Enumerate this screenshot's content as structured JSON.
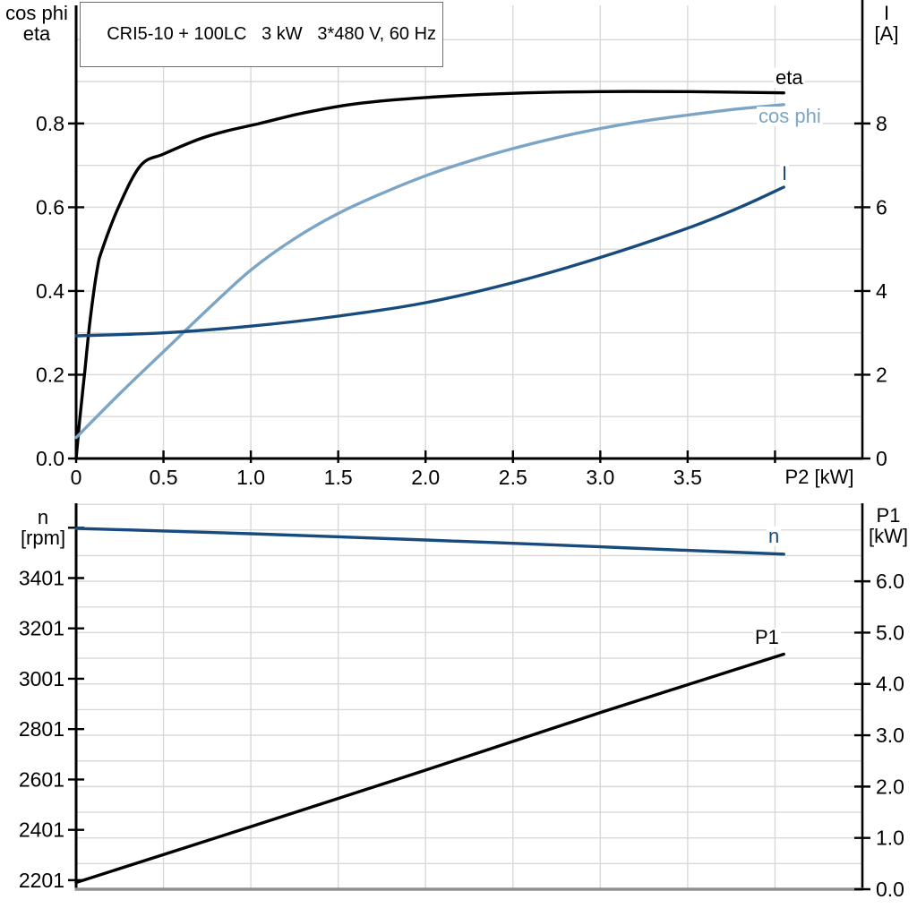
{
  "title_box": "CRI5-10 + 100LC   3 kW   3*480 V, 60 Hz",
  "colors": {
    "curve_black": "#000000",
    "curve_light_blue": "#7ca4c5",
    "curve_dark_blue": "#174b7e",
    "grid": "#d8d8d8",
    "axis": "#000000",
    "axis_gray": "#909090"
  },
  "chart_data": [
    {
      "type": "line",
      "name": "motor-performance",
      "xlabel": "P2 [kW]",
      "xlim": [
        0,
        4.5
      ],
      "x_ticks": [
        0,
        0.5,
        1,
        1.5,
        2,
        2.5,
        3,
        3.5,
        4
      ],
      "x_tick_labels": [
        "0",
        "0.5",
        "1.0",
        "1.5",
        "2.0",
        "2.5",
        "3.0",
        "3.5",
        ""
      ],
      "left_axis": {
        "title_lines": [
          "cos phi",
          "eta"
        ],
        "range": [
          0,
          1.082
        ],
        "ticks": [
          0,
          0.2,
          0.4,
          0.6,
          0.8
        ],
        "tick_labels": [
          "0.0",
          "0.2",
          "0.4",
          "0.6",
          "0.8"
        ]
      },
      "right_axis": {
        "title_lines": [
          "I",
          "[A]"
        ],
        "range": [
          0,
          10.82
        ],
        "ticks": [
          0,
          2,
          4,
          6,
          8
        ],
        "tick_labels": [
          "0",
          "2",
          "4",
          "6",
          "8"
        ]
      },
      "grid": {
        "axis": "left",
        "from": 0.1,
        "to": 1.0,
        "step": 0.1
      },
      "series": [
        {
          "name": "eta",
          "label": "eta",
          "axis": "left",
          "color_key": "curve_black",
          "points": [
            [
              0,
              0
            ],
            [
              0.02,
              0.09
            ],
            [
              0.05,
              0.21
            ],
            [
              0.08,
              0.33
            ],
            [
              0.12,
              0.45
            ],
            [
              0.15,
              0.5
            ],
            [
              0.25,
              0.607
            ],
            [
              0.37,
              0.7
            ],
            [
              0.5,
              0.727
            ],
            [
              0.7,
              0.762
            ],
            [
              0.85,
              0.781
            ],
            [
              1.05,
              0.8
            ],
            [
              1.3,
              0.825
            ],
            [
              1.6,
              0.847
            ],
            [
              2.0,
              0.862
            ],
            [
              2.5,
              0.872
            ],
            [
              3.0,
              0.876
            ],
            [
              3.5,
              0.876
            ],
            [
              4.05,
              0.873
            ]
          ]
        },
        {
          "name": "cos-phi",
          "label": "cos phi",
          "axis": "left",
          "color_key": "curve_light_blue",
          "points": [
            [
              0,
              0.05
            ],
            [
              0.25,
              0.155
            ],
            [
              0.5,
              0.255
            ],
            [
              0.75,
              0.355
            ],
            [
              1.0,
              0.45
            ],
            [
              1.25,
              0.525
            ],
            [
              1.5,
              0.585
            ],
            [
              1.75,
              0.633
            ],
            [
              2.0,
              0.675
            ],
            [
              2.25,
              0.71
            ],
            [
              2.5,
              0.74
            ],
            [
              2.75,
              0.766
            ],
            [
              3.0,
              0.788
            ],
            [
              3.25,
              0.806
            ],
            [
              3.5,
              0.82
            ],
            [
              3.75,
              0.833
            ],
            [
              4.05,
              0.845
            ]
          ]
        },
        {
          "name": "i",
          "label": "I",
          "axis": "right",
          "color_key": "curve_dark_blue",
          "points": [
            [
              0,
              2.93
            ],
            [
              0.5,
              3.0
            ],
            [
              1.0,
              3.16
            ],
            [
              1.5,
              3.4
            ],
            [
              2.0,
              3.72
            ],
            [
              2.5,
              4.2
            ],
            [
              3.0,
              4.8
            ],
            [
              3.5,
              5.5
            ],
            [
              3.8,
              6.0
            ],
            [
              4.05,
              6.48
            ]
          ]
        }
      ]
    },
    {
      "type": "line",
      "name": "speed-and-input-power",
      "xlabel": "",
      "xlim": [
        0,
        4.5
      ],
      "x_ticks": [
        0,
        0.5,
        1,
        1.5,
        2,
        2.5,
        3,
        3.5,
        4
      ],
      "x_tick_labels": [
        "",
        "",
        "",
        "",
        "",
        "",
        "",
        "",
        ""
      ],
      "left_axis": {
        "title_lines": [
          "n",
          "[rpm]"
        ],
        "range": [
          2165,
          3698
        ],
        "ticks": [
          2201,
          2401,
          2601,
          2801,
          3001,
          3201,
          3401,
          3601
        ],
        "tick_labels": [
          "2201",
          "2401",
          "2601",
          "2801",
          "3001",
          "3201",
          "3401",
          ""
        ]
      },
      "right_axis": {
        "title_lines": [
          "P1",
          "[kW]"
        ],
        "range": [
          0,
          7.52
        ],
        "ticks": [
          0,
          1,
          2,
          3,
          4,
          5,
          6
        ],
        "tick_labels": [
          "0.0",
          "1.0",
          "2.0",
          "3.0",
          "4.0",
          "5.0",
          "6.0"
        ]
      },
      "grid": {
        "axis": "right",
        "from": 0.5,
        "to": 7.5,
        "step": 0.5
      },
      "series": [
        {
          "name": "n",
          "label": "n",
          "axis": "left",
          "color_key": "curve_dark_blue",
          "points": [
            [
              0,
              3598
            ],
            [
              0.5,
              3588
            ],
            [
              1.0,
              3577
            ],
            [
              1.5,
              3565
            ],
            [
              2.0,
              3552
            ],
            [
              2.5,
              3539
            ],
            [
              3.0,
              3525
            ],
            [
              3.5,
              3511
            ],
            [
              4.05,
              3496
            ]
          ]
        },
        {
          "name": "p1",
          "label": "P1",
          "axis": "right",
          "color_key": "curve_black",
          "points": [
            [
              0,
              0.13
            ],
            [
              1.0,
              1.22
            ],
            [
              2.0,
              2.32
            ],
            [
              3.0,
              3.44
            ],
            [
              4.05,
              4.58
            ]
          ]
        }
      ]
    }
  ]
}
